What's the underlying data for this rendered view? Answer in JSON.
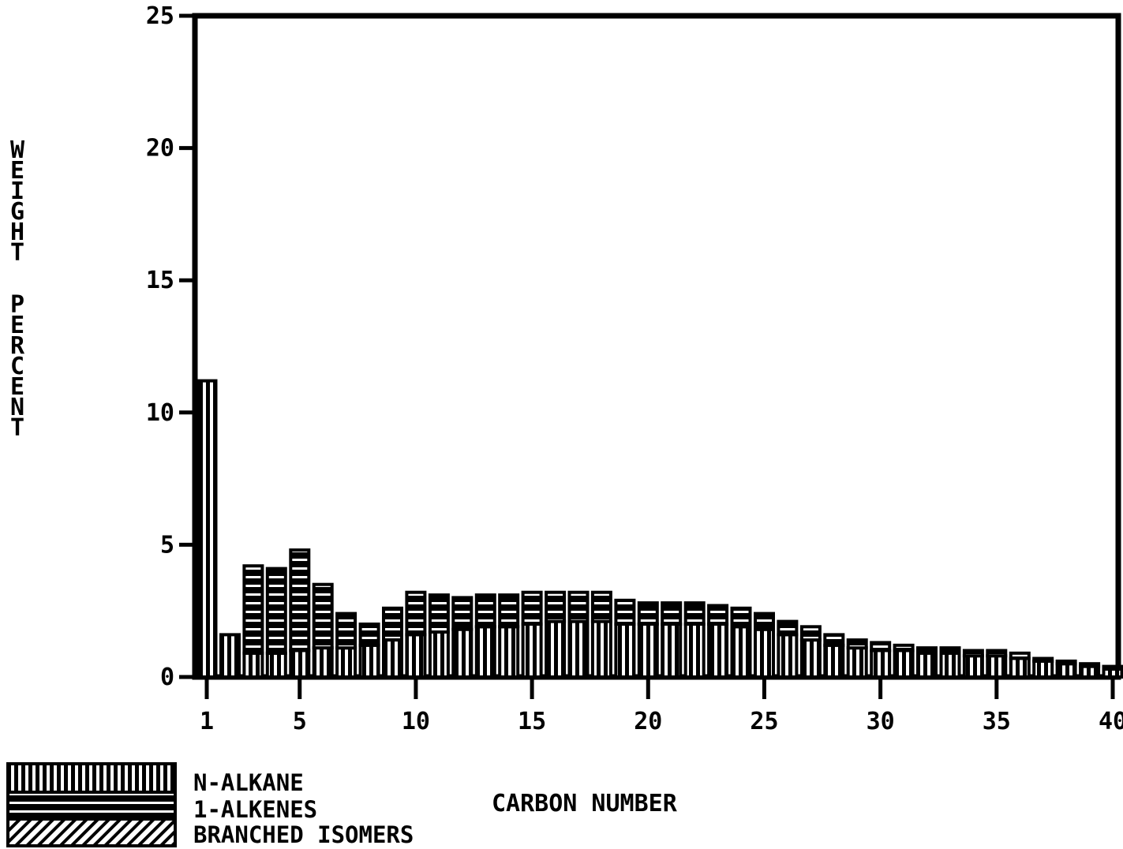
{
  "chart_data": {
    "type": "bar",
    "xlabel": "CARBON NUMBER",
    "ylabel": "WEIGHT PERCENT",
    "ylim": [
      0,
      25
    ],
    "xlim": [
      1,
      40
    ],
    "yticks": [
      0,
      5,
      10,
      15,
      20,
      25
    ],
    "xticks": [
      1,
      5,
      10,
      15,
      20,
      25,
      30,
      35,
      40
    ],
    "stacked": true,
    "legend_position": "bottom-left",
    "categories": [
      1,
      2,
      3,
      4,
      5,
      6,
      7,
      8,
      9,
      10,
      11,
      12,
      13,
      14,
      15,
      16,
      17,
      18,
      19,
      20,
      21,
      22,
      23,
      24,
      25,
      26,
      27,
      28,
      29,
      30,
      31,
      32,
      33,
      34,
      35,
      36,
      37,
      38,
      39,
      40
    ],
    "series": [
      {
        "name": "N-ALKANE",
        "pattern": "vertical-lines",
        "values": [
          11.2,
          1.6,
          0.9,
          0.9,
          1.0,
          1.1,
          1.1,
          1.2,
          1.4,
          1.6,
          1.7,
          1.8,
          1.9,
          1.9,
          2.0,
          2.1,
          2.1,
          2.1,
          2.0,
          2.0,
          2.0,
          2.0,
          2.0,
          1.9,
          1.8,
          1.6,
          1.4,
          1.2,
          1.1,
          1.0,
          1.0,
          0.9,
          0.9,
          0.8,
          0.8,
          0.7,
          0.6,
          0.5,
          0.4,
          0.3
        ]
      },
      {
        "name": "1-ALKENES",
        "pattern": "horizontal-lines",
        "values": [
          0.0,
          0.0,
          3.3,
          3.2,
          3.8,
          2.4,
          1.3,
          0.8,
          1.2,
          1.6,
          1.4,
          1.2,
          1.2,
          1.2,
          1.2,
          1.1,
          1.1,
          1.1,
          0.9,
          0.8,
          0.8,
          0.8,
          0.7,
          0.7,
          0.6,
          0.5,
          0.5,
          0.4,
          0.3,
          0.3,
          0.2,
          0.2,
          0.2,
          0.2,
          0.2,
          0.2,
          0.1,
          0.1,
          0.1,
          0.1
        ]
      },
      {
        "name": "BRANCHED ISOMERS",
        "pattern": "diagonal-lines",
        "values": [
          0,
          0,
          0,
          0,
          0,
          0,
          0,
          0,
          0,
          0,
          0,
          0,
          0,
          0,
          0,
          0,
          0,
          0,
          0,
          0,
          0,
          0,
          0,
          0,
          0,
          0,
          0,
          0,
          0,
          0,
          0,
          0,
          0,
          0,
          0,
          0,
          0,
          0,
          0,
          0
        ]
      }
    ]
  }
}
